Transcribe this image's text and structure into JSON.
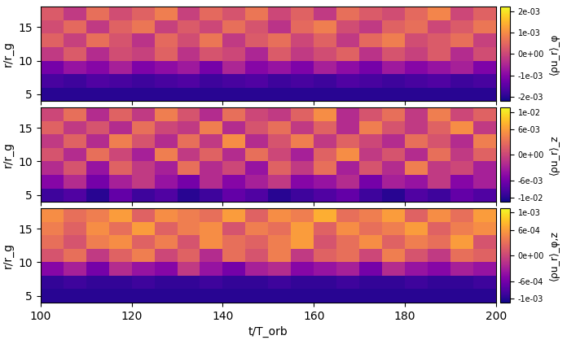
{
  "chart_data": [
    {
      "type": "heatmap",
      "x": [
        100,
        105,
        110,
        115,
        120,
        125,
        130,
        135,
        140,
        145,
        150,
        155,
        160,
        165,
        170,
        175,
        180,
        185,
        190,
        195,
        200
      ],
      "y": [
        4,
        6,
        8,
        10,
        12,
        14,
        16,
        18
      ],
      "cells": [
        [
          -0.002,
          -0.002,
          -0.002,
          -0.002,
          -0.002,
          -0.002,
          -0.002,
          -0.002,
          -0.002,
          -0.002,
          -0.002,
          -0.002,
          -0.002,
          -0.002,
          -0.002,
          -0.002,
          -0.002,
          -0.002,
          -0.002,
          -0.002
        ],
        [
          -0.0017,
          -0.0018,
          -0.0016,
          -0.0017,
          -0.0018,
          -0.0017,
          -0.0016,
          -0.0018,
          -0.0017,
          -0.0016,
          -0.0018,
          -0.0017,
          -0.0018,
          -0.0016,
          -0.0017,
          -0.0018,
          -0.0017,
          -0.0016,
          -0.0018,
          -0.0017
        ],
        [
          -0.0012,
          -0.0008,
          -0.001,
          -0.0006,
          -0.0011,
          -0.0009,
          -0.0007,
          -0.0012,
          -0.0005,
          -0.001,
          -0.0008,
          -0.0011,
          -0.0006,
          -0.0009,
          -0.0012,
          -0.0007,
          -0.001,
          -0.0008,
          -0.0006,
          -0.0011
        ],
        [
          -0.0002,
          0.0003,
          -0.0004,
          0.0001,
          -0.0001,
          0.0004,
          -0.0003,
          0.0002,
          0.0,
          -0.0005,
          0.0003,
          -0.0002,
          0.0001,
          0.0004,
          -0.0003,
          0.0002,
          -0.0001,
          0.0003,
          -0.0004,
          0.0001
        ],
        [
          0.0004,
          -0.0001,
          0.0006,
          0.0002,
          -0.0003,
          0.0005,
          0.0001,
          0.0007,
          -0.0002,
          0.0003,
          0.0006,
          0.0,
          0.0004,
          -0.0002,
          0.0005,
          0.0008,
          0.0001,
          0.0003,
          0.0006,
          -0.0001
        ],
        [
          0.0001,
          0.0005,
          -0.0002,
          0.0004,
          0.0007,
          -0.0001,
          0.0003,
          0.0,
          0.0006,
          0.0002,
          -0.0003,
          0.0005,
          0.0008,
          0.0001,
          -0.0002,
          0.0004,
          0.0006,
          0.0,
          0.0003,
          0.0007
        ],
        [
          0.0003,
          -0.0002,
          0.0006,
          0.0001,
          0.0004,
          0.0008,
          -0.0001,
          0.0005,
          0.0002,
          0.0007,
          0.0,
          0.0004,
          -0.0002,
          0.0006,
          0.0003,
          0.0001,
          0.0005,
          0.0009,
          0.0,
          0.0004
        ]
      ],
      "colorbar": {
        "label": "⟨ρu_r⟩_φ",
        "range": [
          -0.0022,
          0.0022
        ],
        "ticks": [
          {
            "value": -0.002,
            "label": "-2e-03"
          },
          {
            "value": -0.001,
            "label": "-1e-03"
          },
          {
            "value": 0,
            "label": "0e+00"
          },
          {
            "value": 0.001,
            "label": "1e-03"
          },
          {
            "value": 0.002,
            "label": "2e-03"
          }
        ]
      },
      "xlim": [
        100,
        200
      ],
      "ylim": [
        4,
        18
      ],
      "xticks": [
        100,
        120,
        140,
        160,
        180,
        200
      ],
      "yticks": [
        5,
        10,
        15
      ],
      "ylabel": "r/r_g",
      "tick_labels": "y"
    },
    {
      "type": "heatmap",
      "x": [
        100,
        105,
        110,
        115,
        120,
        125,
        130,
        135,
        140,
        145,
        150,
        155,
        160,
        165,
        170,
        175,
        180,
        185,
        190,
        195,
        200
      ],
      "y": [
        4,
        6,
        8,
        10,
        12,
        14,
        16,
        18
      ],
      "cells": [
        [
          -0.009,
          -0.008,
          -0.01,
          -0.007,
          -0.009,
          -0.008,
          -0.01,
          -0.009,
          -0.007,
          -0.008,
          -0.01,
          -0.009,
          -0.008,
          -0.007,
          -0.009,
          -0.01,
          -0.008,
          -0.009,
          -0.007,
          -0.008
        ],
        [
          -0.005,
          -0.002,
          -0.006,
          -0.003,
          -0.001,
          -0.004,
          -0.006,
          -0.002,
          -0.005,
          -0.003,
          -0.001,
          -0.005,
          -0.004,
          -0.002,
          -0.006,
          -0.003,
          -0.004,
          -0.001,
          -0.005,
          -0.003
        ],
        [
          -0.002,
          0.001,
          -0.004,
          0.002,
          -0.001,
          -0.003,
          0.003,
          -0.002,
          0.0,
          -0.004,
          0.002,
          -0.001,
          0.003,
          -0.003,
          0.001,
          -0.002,
          0.004,
          -0.001,
          0.0,
          -0.003
        ],
        [
          0.001,
          -0.002,
          0.003,
          0.0,
          -0.003,
          0.004,
          -0.001,
          0.002,
          -0.002,
          0.003,
          0.0,
          -0.003,
          0.002,
          0.005,
          -0.001,
          0.001,
          -0.002,
          0.003,
          -0.001,
          0.002
        ],
        [
          -0.001,
          0.002,
          -0.002,
          0.004,
          0.001,
          -0.002,
          0.003,
          -0.001,
          0.005,
          -0.002,
          0.001,
          0.004,
          -0.001,
          0.002,
          0.0,
          -0.002,
          0.003,
          0.001,
          -0.002,
          0.004
        ],
        [
          0.002,
          -0.001,
          0.001,
          -0.002,
          0.003,
          0.0,
          -0.001,
          0.004,
          -0.002,
          0.001,
          0.003,
          -0.001,
          0.002,
          -0.002,
          0.004,
          0.001,
          -0.001,
          0.002,
          0.005,
          -0.001
        ],
        [
          0.0,
          0.003,
          -0.002,
          0.002,
          -0.001,
          0.004,
          0.001,
          -0.002,
          0.003,
          0.0,
          -0.001,
          0.002,
          0.005,
          -0.002,
          0.001,
          0.003,
          -0.001,
          0.004,
          0.0,
          0.002
        ]
      ],
      "colorbar": {
        "label": "⟨ρu_r⟩_z",
        "range": [
          -0.011,
          0.011
        ],
        "ticks": [
          {
            "value": -0.01,
            "label": "-1e-02"
          },
          {
            "value": -0.006,
            "label": "-6e-03"
          },
          {
            "value": 0,
            "label": "0e+00"
          },
          {
            "value": 0.006,
            "label": "6e-03"
          },
          {
            "value": 0.01,
            "label": "1e-02"
          }
        ]
      },
      "xlim": [
        100,
        200
      ],
      "ylim": [
        4,
        18
      ],
      "xticks": [
        100,
        120,
        140,
        160,
        180,
        200
      ],
      "yticks": [
        5,
        10,
        15
      ],
      "ylabel": "r/r_g",
      "tick_labels": "y"
    },
    {
      "type": "heatmap",
      "x": [
        100,
        105,
        110,
        115,
        120,
        125,
        130,
        135,
        140,
        145,
        150,
        155,
        160,
        165,
        170,
        175,
        180,
        185,
        190,
        195,
        200
      ],
      "y": [
        4,
        6,
        8,
        10,
        12,
        14,
        16,
        18
      ],
      "cells": [
        [
          -0.001,
          -0.001,
          -0.001,
          -0.001,
          -0.001,
          -0.001,
          -0.001,
          -0.001,
          -0.001,
          -0.001,
          -0.001,
          -0.001,
          -0.001,
          -0.001,
          -0.001,
          -0.001,
          -0.001,
          -0.001,
          -0.001,
          -0.001
        ],
        [
          -0.00095,
          -0.0009,
          -0.00095,
          -0.00095,
          -0.0009,
          -0.00095,
          -0.00095,
          -0.0009,
          -0.00095,
          -0.00095,
          -0.0009,
          -0.00095,
          -0.00095,
          -0.0009,
          -0.00095,
          -0.00095,
          -0.0009,
          -0.00095,
          -0.00095,
          -0.0009
        ],
        [
          -0.0005,
          -0.0003,
          -0.0006,
          -0.0002,
          -0.0004,
          -0.0005,
          -0.0001,
          -0.0004,
          -0.0006,
          -0.0003,
          -0.0002,
          -0.0005,
          -0.0004,
          -0.0003,
          -0.0006,
          -0.0002,
          -0.0004,
          -0.0005,
          -0.0003,
          -0.0004
        ],
        [
          0.0001,
          0.0003,
          -0.0001,
          0.0002,
          0.0004,
          0.0,
          0.0002,
          -0.0002,
          0.0003,
          0.0001,
          0.0004,
          -0.0001,
          0.0002,
          0.0003,
          0.0,
          0.0004,
          0.0001,
          -0.0001,
          0.0003,
          0.0002
        ],
        [
          0.0003,
          0.0001,
          0.0004,
          0.0005,
          0.0002,
          0.0004,
          0.0001,
          0.0005,
          0.0003,
          0.0002,
          0.0004,
          0.0006,
          0.0001,
          0.0003,
          0.0005,
          0.0002,
          0.0004,
          0.0003,
          0.0006,
          0.0001
        ],
        [
          0.0004,
          0.0002,
          0.0005,
          0.0003,
          0.0006,
          0.0002,
          0.0004,
          0.0005,
          0.0001,
          0.0004,
          0.0003,
          0.0006,
          0.0002,
          0.0005,
          0.0003,
          0.0004,
          0.0006,
          0.0002,
          0.0004,
          0.0005
        ],
        [
          0.0005,
          0.0003,
          0.0004,
          0.0006,
          0.0002,
          0.0005,
          0.0004,
          0.0003,
          0.0006,
          0.0002,
          0.0005,
          0.0004,
          0.0007,
          0.0003,
          0.0004,
          0.0006,
          0.0002,
          0.0005,
          0.0003,
          0.0006
        ]
      ],
      "colorbar": {
        "label": "⟨ρu_r⟩_φ,z",
        "range": [
          -0.0011,
          0.0011
        ],
        "ticks": [
          {
            "value": -0.001,
            "label": "-1e-03"
          },
          {
            "value": -0.0006,
            "label": "-6e-04"
          },
          {
            "value": 0,
            "label": "0e+00"
          },
          {
            "value": 0.0006,
            "label": "6e-04"
          },
          {
            "value": 0.001,
            "label": "1e-03"
          }
        ]
      },
      "xlim": [
        100,
        200
      ],
      "ylim": [
        4,
        18
      ],
      "xticks": [
        100,
        120,
        140,
        160,
        180,
        200
      ],
      "yticks": [
        5,
        10,
        15
      ],
      "xlabel": "t/T_orb",
      "ylabel": "r/r_g"
    }
  ]
}
